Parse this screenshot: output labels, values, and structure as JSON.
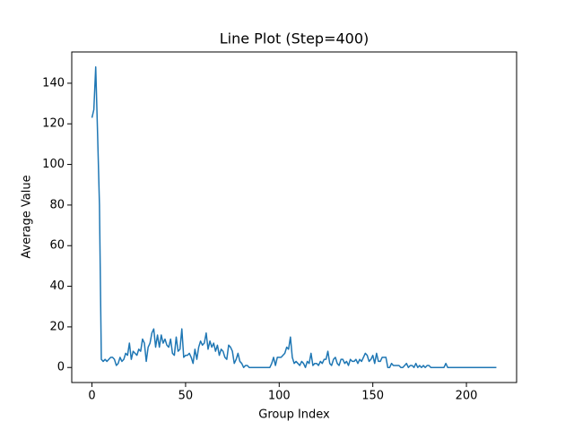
{
  "chart_data": {
    "type": "line",
    "title": "Line Plot (Step=400)",
    "xlabel": "Group Index",
    "ylabel": "Average Value",
    "x": [
      0,
      1,
      2,
      3,
      4,
      5,
      6,
      7,
      8,
      9,
      10,
      11,
      12,
      13,
      14,
      15,
      16,
      17,
      18,
      19,
      20,
      21,
      22,
      23,
      24,
      25,
      26,
      27,
      28,
      29,
      30,
      31,
      32,
      33,
      34,
      35,
      36,
      37,
      38,
      39,
      40,
      41,
      42,
      43,
      44,
      45,
      46,
      47,
      48,
      49,
      50,
      51,
      52,
      53,
      54,
      55,
      56,
      57,
      58,
      59,
      60,
      61,
      62,
      63,
      64,
      65,
      66,
      67,
      68,
      69,
      70,
      71,
      72,
      73,
      74,
      75,
      76,
      77,
      78,
      79,
      80,
      81,
      82,
      83,
      84,
      85,
      86,
      87,
      88,
      89,
      90,
      91,
      92,
      93,
      94,
      95,
      96,
      97,
      98,
      99,
      100,
      101,
      102,
      103,
      104,
      105,
      106,
      107,
      108,
      109,
      110,
      111,
      112,
      113,
      114,
      115,
      116,
      117,
      118,
      119,
      120,
      121,
      122,
      123,
      124,
      125,
      126,
      127,
      128,
      129,
      130,
      131,
      132,
      133,
      134,
      135,
      136,
      137,
      138,
      139,
      140,
      141,
      142,
      143,
      144,
      145,
      146,
      147,
      148,
      149,
      150,
      151,
      152,
      153,
      154,
      155,
      156,
      157,
      158,
      159,
      160,
      161,
      162,
      163,
      164,
      165,
      166,
      167,
      168,
      169,
      170,
      171,
      172,
      173,
      174,
      175,
      176,
      177,
      178,
      179,
      180,
      181,
      182,
      183,
      184,
      185,
      186,
      187,
      188,
      189,
      190,
      191,
      192,
      193,
      194,
      195,
      196,
      197,
      198,
      199,
      200,
      201,
      202,
      203,
      204,
      205,
      206,
      207,
      208,
      209,
      210,
      211,
      212,
      213,
      214,
      215,
      216
    ],
    "series": [
      {
        "color": "#1f77b4",
        "values": [
          123,
          127,
          148,
          115,
          80,
          4,
          3,
          4,
          3,
          4,
          5,
          5,
          4,
          1,
          2,
          5,
          3,
          4,
          7,
          6,
          12,
          4,
          8,
          7,
          6,
          9,
          8,
          14,
          12,
          3,
          10,
          12,
          17,
          19,
          10,
          16,
          10,
          16,
          12,
          14,
          11,
          10,
          14,
          7,
          6,
          15,
          8,
          9,
          19,
          5,
          6,
          6,
          7,
          5,
          2,
          9,
          4,
          10,
          13,
          11,
          12,
          17,
          9,
          13,
          10,
          12,
          8,
          11,
          6,
          9,
          8,
          5,
          4,
          11,
          10,
          8,
          2,
          4,
          7,
          3,
          2,
          0,
          1,
          1,
          0,
          0,
          0,
          0,
          0,
          0,
          0,
          0,
          0,
          0,
          0,
          0,
          2,
          5,
          1,
          5,
          5,
          5,
          6,
          7,
          10,
          9,
          15,
          5,
          2,
          3,
          2,
          1,
          3,
          2,
          0,
          3,
          2,
          7,
          1,
          2,
          2,
          1,
          3,
          2,
          4,
          4,
          8,
          2,
          1,
          4,
          5,
          2,
          1,
          4,
          4,
          2,
          3,
          1,
          4,
          3,
          3,
          4,
          2,
          4,
          3,
          5,
          7,
          6,
          3,
          4,
          6,
          2,
          7,
          3,
          3,
          5,
          5,
          5,
          0,
          0,
          2,
          1,
          1,
          1,
          1,
          0,
          0,
          1,
          2,
          0,
          1,
          1,
          0,
          2,
          0,
          1,
          0,
          1,
          0,
          1,
          1,
          0,
          0,
          0,
          0,
          0,
          0,
          0,
          0,
          2,
          0,
          0,
          0,
          0,
          0,
          0,
          0,
          0,
          0,
          0,
          0,
          0,
          0,
          0,
          0,
          0,
          0,
          0,
          0,
          0,
          0,
          0,
          0,
          0,
          0,
          0,
          0
        ]
      }
    ],
    "xlim": [
      -10.8,
      226.8
    ],
    "ylim": [
      -7.4,
      155.4
    ],
    "xticks": [
      0,
      50,
      100,
      150,
      200
    ],
    "yticks": [
      0,
      20,
      40,
      60,
      80,
      100,
      120,
      140
    ]
  }
}
